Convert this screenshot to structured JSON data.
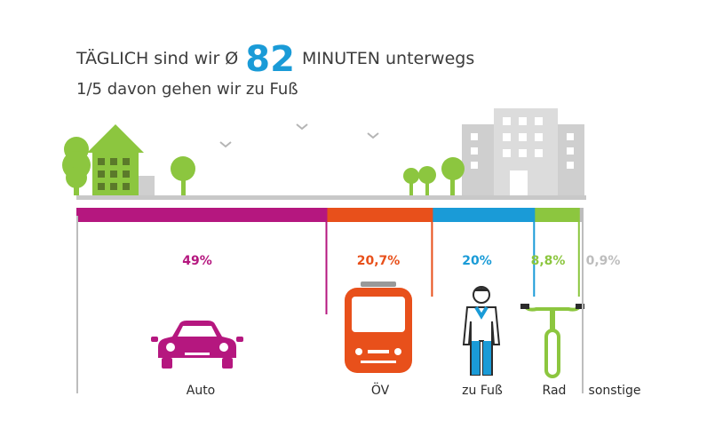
{
  "header": {
    "title_pre": "TÄGLICH sind wir Ø",
    "title_number": "82",
    "title_post": "MINUTEN unterwegs",
    "subtitle": "1/5 davon gehen wir zu Fuß"
  },
  "chart_data": {
    "type": "bar",
    "orientation": "stacked-horizontal",
    "categories": [
      "Auto",
      "ÖV",
      "zu Fuß",
      "Rad",
      "sonstige"
    ],
    "values": [
      49,
      20.7,
      20,
      8.8,
      0.9
    ],
    "value_labels": [
      "49%",
      "20,7%",
      "20%",
      "8,8%",
      "0,9%"
    ],
    "colors": [
      "#b5177f",
      "#e8501b",
      "#1a9bd7",
      "#8cc63f",
      "#bdbdbd"
    ],
    "unit": "%",
    "title": "",
    "xlabel": "",
    "ylabel": ""
  }
}
